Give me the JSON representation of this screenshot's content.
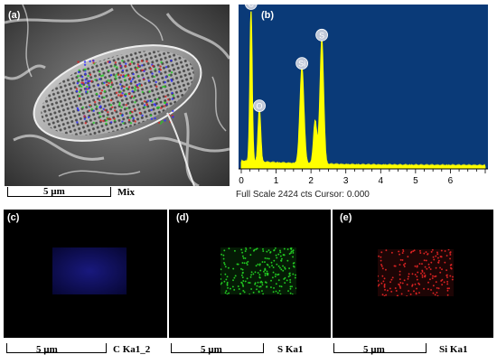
{
  "panel_a": {
    "label": "(a)",
    "scale_text": "5 µm",
    "caption": "Mix"
  },
  "panel_b": {
    "label": "(b)",
    "footer": "Full Scale 2424 cts Cursor: 0.000"
  },
  "panel_c": {
    "label": "(c)",
    "scale_text": "5 µm",
    "caption": "C Ka1_2",
    "map_color": "#2a2aff"
  },
  "panel_d": {
    "label": "(d)",
    "scale_text": "5 µm",
    "caption": "S Ka1",
    "map_color": "#22cc22"
  },
  "panel_e": {
    "label": "(e)",
    "scale_text": "5 µm",
    "caption": "Si Ka1",
    "map_color": "#dd2222"
  },
  "chart_data": {
    "type": "line",
    "title": "",
    "xlabel": "",
    "ylabel": "",
    "x_ticks": [
      0,
      1,
      2,
      3,
      4,
      5,
      6
    ],
    "xlim": [
      0,
      7
    ],
    "background": "#0a3a78",
    "line_color": "#ffff00",
    "peaks": [
      {
        "label": "C",
        "x": 0.28,
        "height": 1.0
      },
      {
        "label": "O",
        "x": 0.52,
        "height": 0.35
      },
      {
        "label": "Si",
        "x": 1.74,
        "height": 0.62
      },
      {
        "label": "S",
        "x": 2.31,
        "height": 0.8
      }
    ]
  }
}
